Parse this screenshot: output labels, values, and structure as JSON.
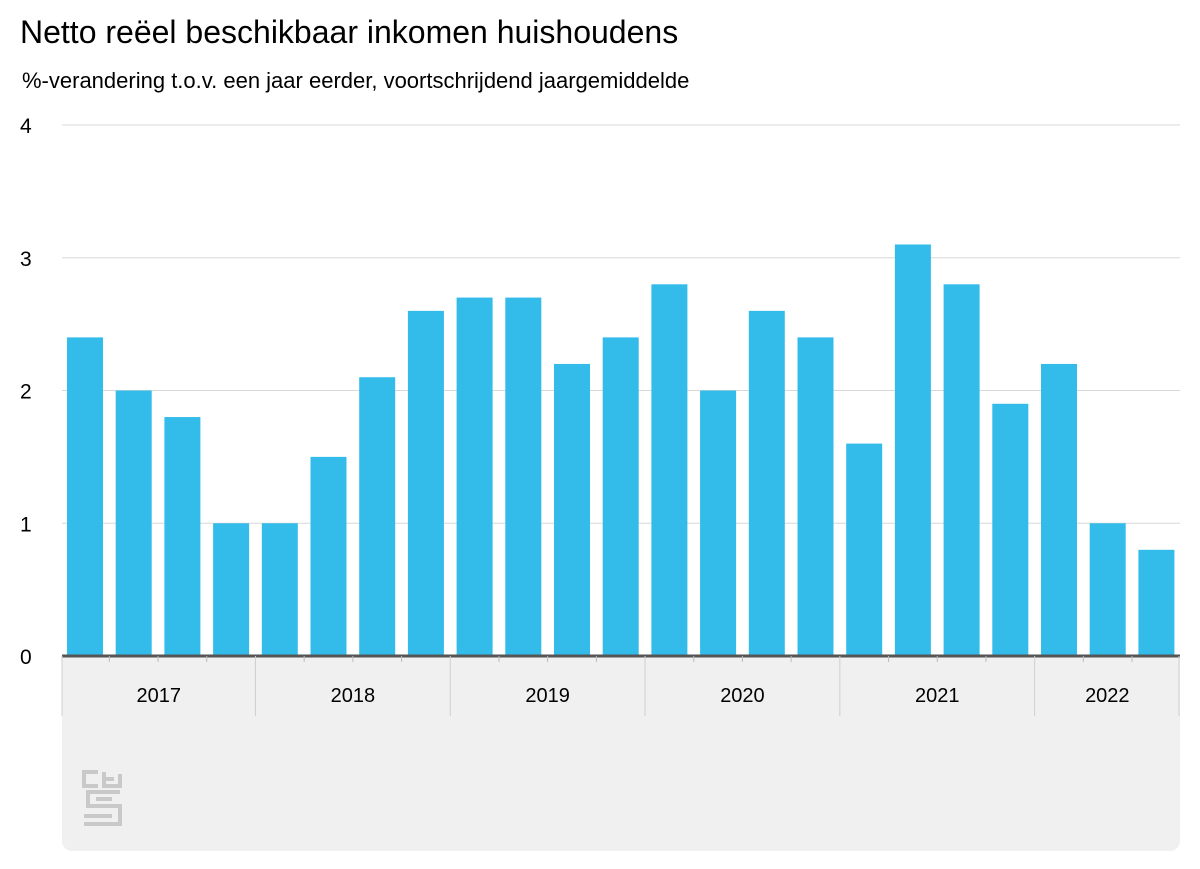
{
  "title": "Netto reëel beschikbaar inkomen huishoudens",
  "subtitle": "%-verandering t.o.v. een jaar eerder, voortschrijdend jaargemiddelde",
  "colors": {
    "bar": "#33bce9",
    "grid": "#d8d8d8",
    "axis": "#555555",
    "panel": "#f0f0f0",
    "logo": "#c9c9c9"
  },
  "logo_icon": "cbs-logo-icon",
  "chart_data": {
    "type": "bar",
    "title": "Netto reëel beschikbaar inkomen huishoudens",
    "subtitle": "%-verandering t.o.v. een jaar eerder, voortschrijdend jaargemiddelde",
    "xlabel": "",
    "ylabel": "",
    "ylim": [
      0,
      4
    ],
    "yticks": [
      0,
      1,
      2,
      3,
      4
    ],
    "grid": true,
    "groups": [
      {
        "label": "2017",
        "count": 4
      },
      {
        "label": "2018",
        "count": 4
      },
      {
        "label": "2019",
        "count": 4
      },
      {
        "label": "2020",
        "count": 4
      },
      {
        "label": "2021",
        "count": 4
      },
      {
        "label": "2022",
        "count": 3
      }
    ],
    "values": [
      2.4,
      2.0,
      1.8,
      1.0,
      1.0,
      1.5,
      2.1,
      2.6,
      2.7,
      2.7,
      2.2,
      2.4,
      2.8,
      2.0,
      2.6,
      2.4,
      1.6,
      3.1,
      2.8,
      1.9,
      2.2,
      1.0,
      0.8
    ]
  }
}
